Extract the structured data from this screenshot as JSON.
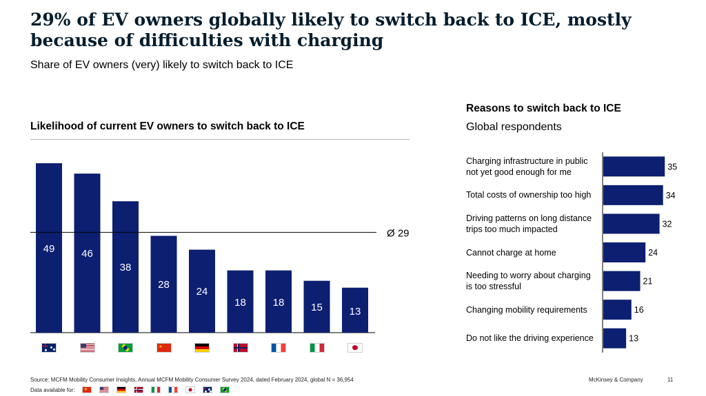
{
  "title": "29% of EV owners globally likely to switch back to ICE, mostly because of difficulties with charging",
  "subtitle": "Share of EV owners (very) likely to switch back to ICE",
  "chart_data": [
    {
      "type": "bar",
      "title": "Likelihood of current EV owners to switch back to ICE",
      "categories": [
        "australia-flag",
        "usa-flag",
        "brazil-flag",
        "china-flag",
        "germany-flag",
        "norway-flag",
        "france-flag",
        "italy-flag",
        "japan-flag"
      ],
      "values": [
        49,
        46,
        38,
        28,
        24,
        18,
        18,
        15,
        13
      ],
      "reference_line": {
        "label": "Ø 29",
        "value": 29
      },
      "ylim": [
        0,
        50
      ],
      "color": "#0c1f71",
      "legend": "none",
      "grid": false
    },
    {
      "type": "bar",
      "orientation": "horizontal",
      "title": "Reasons to switch back to ICE",
      "subtitle": "Global respondents",
      "categories": [
        "Charging infrastructure in public not yet good enough for me",
        "Total costs of ownership too high",
        "Driving patterns on long distance trips too much impacted",
        "Cannot charge at home",
        "Needing to worry about charging is too stressful",
        "Changing mobility requirements",
        "Do not like the driving experience"
      ],
      "label_lines": [
        [
          "Charging infrastructure in public",
          "not yet good enough for me"
        ],
        [
          "Total costs of ownership too high"
        ],
        [
          "Driving patterns on long distance",
          "trips too much impacted"
        ],
        [
          "Cannot charge at home"
        ],
        [
          "Needing to worry about charging",
          "is too stressful"
        ],
        [
          "Changing mobility requirements"
        ],
        [
          "Do not like the driving experience"
        ]
      ],
      "values": [
        35,
        34,
        32,
        24,
        21,
        16,
        13
      ],
      "xlim": [
        0,
        40
      ],
      "color": "#0c1f71",
      "legend": "none",
      "grid": false
    }
  ],
  "footer": {
    "source": "Source: MCFM Mobility Consumer Insights, Annual MCFM Mobility Consumer Survey 2024, dated February 2024, global N = 36,954",
    "data_available_label": "Data available for:",
    "data_available_flags": [
      "china-flag",
      "usa-flag",
      "germany-flag",
      "norway-flag",
      "italy-flag",
      "france-flag",
      "japan-flag",
      "australia-flag",
      "brazil-flag"
    ],
    "brand": "McKinsey & Company",
    "page": "11"
  }
}
